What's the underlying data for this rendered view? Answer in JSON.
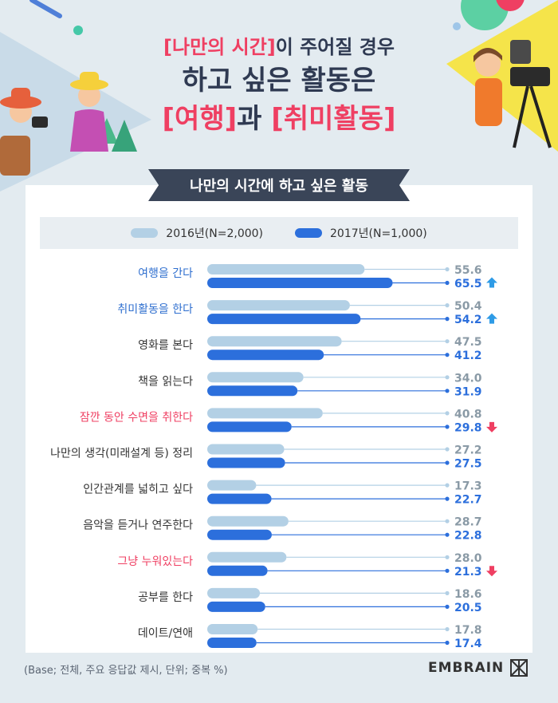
{
  "title": {
    "line1_accent": "[나만의 시간]",
    "line1_rest": "이 주어질 경우",
    "line2": "하고 싶은 활동은",
    "line3_accent_a": "[여행]",
    "line3_mid": "과 ",
    "line3_accent_b": "[취미활동]"
  },
  "banner": "나만의 시간에 하고 싶은 활동",
  "legend": {
    "s2016": "2016년(N=2,000)",
    "s2017": "2017년(N=1,000)"
  },
  "footnote": "(Base; 전체, 주요 응답값 제시, 단위; 중복 %)",
  "brand": "EMBRAIN",
  "colors": {
    "series2016": "#b3d0e5",
    "series2017": "#2c6fdc",
    "label_blue": "#2f6fcf",
    "label_red": "#ef3f62",
    "label_dark": "#333333",
    "up_arrow": "#2e9be6",
    "down_arrow": "#ef3f62"
  },
  "chart_data": {
    "type": "bar",
    "orientation": "horizontal",
    "categories": [
      "여행을 간다",
      "취미활동을 한다",
      "영화를 본다",
      "책을 읽는다",
      "잠깐 동안 수면을 취한다",
      "나만의 생각(미래설계 등) 정리",
      "인간관계를 넓히고 싶다",
      "음악을 듣거나 연주한다",
      "그냥 누워있는다",
      "공부를 한다",
      "데이트/연애"
    ],
    "category_highlight": [
      "blue",
      "blue",
      "dark",
      "dark",
      "red",
      "dark",
      "dark",
      "dark",
      "red",
      "dark",
      "dark"
    ],
    "series": [
      {
        "name": "2016년(N=2,000)",
        "values": [
          55.6,
          50.4,
          47.5,
          34.0,
          40.8,
          27.2,
          17.3,
          28.7,
          28.0,
          18.6,
          17.8
        ]
      },
      {
        "name": "2017년(N=1,000)",
        "values": [
          65.5,
          54.2,
          41.2,
          31.9,
          29.8,
          27.5,
          22.7,
          22.8,
          21.3,
          20.5,
          17.4
        ]
      }
    ],
    "change_markers": [
      "up",
      "up",
      "",
      "",
      "down",
      "",
      "",
      "",
      "down",
      "",
      ""
    ],
    "unit": "%",
    "xlim": [
      0,
      100
    ]
  }
}
